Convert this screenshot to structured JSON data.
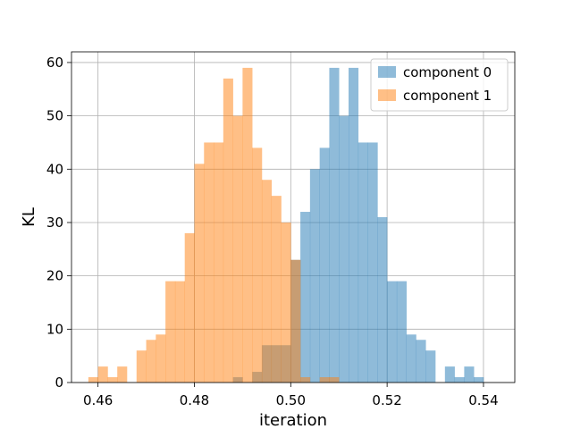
{
  "chart_data": {
    "type": "bar",
    "title": "",
    "xlabel": "iteration",
    "ylabel": "KL",
    "xlim": [
      0.4545,
      0.5465
    ],
    "ylim": [
      0,
      62
    ],
    "xticks": [
      0.46,
      0.48,
      0.5,
      0.52,
      0.54
    ],
    "xtick_labels": [
      "0.46",
      "0.48",
      "0.50",
      "0.52",
      "0.54"
    ],
    "yticks": [
      0,
      10,
      20,
      30,
      40,
      50,
      60
    ],
    "ytick_labels": [
      "0",
      "10",
      "20",
      "30",
      "40",
      "50",
      "60"
    ],
    "grid": true,
    "legend_position": "top-right",
    "bin_width": 0.002,
    "series": [
      {
        "name": "component 0",
        "color": "#1f77b4",
        "opacity": 0.5,
        "bin_start": 0.488,
        "counts": [
          1,
          0,
          2,
          7,
          7,
          7,
          23,
          32,
          40,
          44,
          59,
          50,
          59,
          45,
          45,
          31,
          19,
          19,
          9,
          8,
          6,
          0,
          3,
          1,
          3,
          1
        ]
      },
      {
        "name": "component 1",
        "color": "#ff7f0e",
        "opacity": 0.5,
        "bin_start": 0.458,
        "counts": [
          1,
          3,
          1,
          3,
          0,
          6,
          8,
          9,
          19,
          19,
          28,
          41,
          45,
          45,
          57,
          50,
          59,
          44,
          38,
          35,
          30,
          23,
          1,
          0,
          1,
          1
        ]
      }
    ]
  }
}
